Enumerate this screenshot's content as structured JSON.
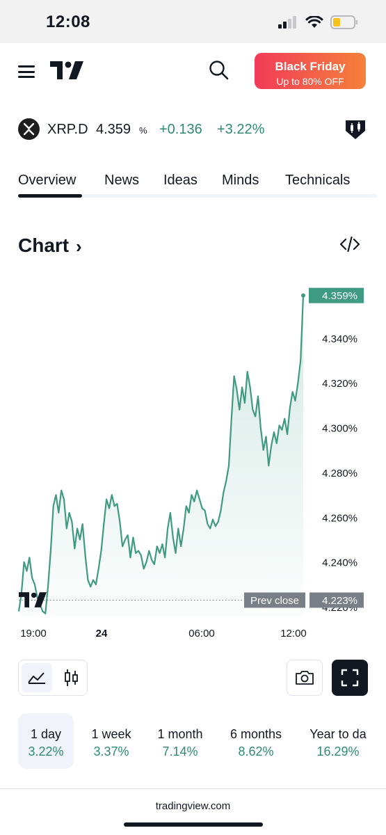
{
  "status_bar": {
    "time": "12:08"
  },
  "header": {
    "promo_title": "Black Friday",
    "promo_subtitle": "Up to 80% OFF"
  },
  "symbol": {
    "name": "XRP.D",
    "price": "4.359",
    "unit": "%",
    "change": "+0.136",
    "change_percent": "+3.22%",
    "change_color": "#2e8b70"
  },
  "tabs": [
    {
      "label": "Overview",
      "active": true
    },
    {
      "label": "News"
    },
    {
      "label": "Ideas"
    },
    {
      "label": "Minds"
    },
    {
      "label": "Technicals"
    }
  ],
  "chart_section": {
    "title": "Chart",
    "chevron": "›"
  },
  "chart_data": {
    "type": "area",
    "line_color": "#3f9a82",
    "ylim": [
      4.216,
      4.362
    ],
    "x_ticks": [
      "19:00",
      "24",
      "06:00",
      "12:00"
    ],
    "y_ticks": [
      "4.340%",
      "4.320%",
      "4.300%",
      "4.280%",
      "4.260%",
      "4.240%",
      "4.220%"
    ],
    "last_value_label": "4.359%",
    "prev_close_label": "Prev close",
    "prev_close_value_label": "4.223%",
    "prev_close": 4.223,
    "values": [
      4.218,
      4.226,
      4.24,
      4.236,
      4.242,
      4.233,
      4.23,
      4.224,
      4.221,
      4.218,
      4.217,
      4.229,
      4.245,
      4.265,
      4.27,
      4.262,
      4.272,
      4.268,
      4.255,
      4.262,
      4.258,
      4.246,
      4.255,
      4.25,
      4.257,
      4.243,
      4.232,
      4.229,
      4.232,
      4.23,
      4.237,
      4.245,
      4.257,
      4.268,
      4.264,
      4.27,
      4.265,
      4.266,
      4.258,
      4.247,
      4.25,
      4.252,
      4.242,
      4.251,
      4.244,
      4.245,
      4.243,
      4.237,
      4.24,
      4.245,
      4.241,
      4.239,
      4.247,
      4.244,
      4.248,
      4.242,
      4.255,
      4.262,
      4.251,
      4.244,
      4.255,
      4.247,
      4.255,
      4.265,
      4.262,
      4.27,
      4.267,
      4.272,
      4.268,
      4.264,
      4.263,
      4.257,
      4.255,
      4.259,
      4.256,
      4.258,
      4.263,
      4.271,
      4.276,
      4.283,
      4.304,
      4.323,
      4.317,
      4.308,
      4.318,
      4.311,
      4.325,
      4.318,
      4.308,
      4.305,
      4.314,
      4.3,
      4.29,
      4.296,
      4.283,
      4.292,
      4.298,
      4.293,
      4.301,
      4.299,
      4.304,
      4.297,
      4.309,
      4.316,
      4.312,
      4.32,
      4.33,
      4.359
    ]
  },
  "chart_toolbar": {},
  "periods": [
    {
      "label": "1 day",
      "value": "3.22%",
      "active": true
    },
    {
      "label": "1 week",
      "value": "3.37%"
    },
    {
      "label": "1 month",
      "value": "7.14%"
    },
    {
      "label": "6 months",
      "value": "8.62%"
    },
    {
      "label": "Year to da",
      "value": "16.29%"
    }
  ],
  "footer": {
    "url": "tradingview.com"
  }
}
